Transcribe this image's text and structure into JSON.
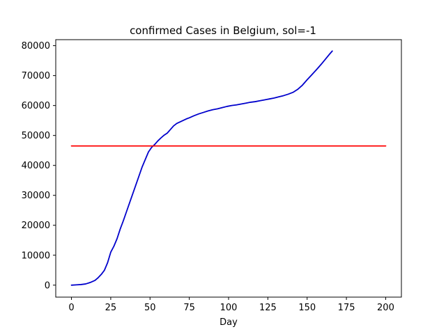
{
  "chart_data": {
    "type": "line",
    "title": "confirmed Cases in Belgium, sol=-1",
    "xlabel": "Day",
    "ylabel": "",
    "xlim": [
      -10,
      210
    ],
    "ylim": [
      -4000,
      82000
    ],
    "x_ticks": [
      0,
      25,
      50,
      75,
      100,
      125,
      150,
      175,
      200
    ],
    "y_ticks": [
      0,
      10000,
      20000,
      30000,
      40000,
      50000,
      60000,
      70000,
      80000
    ],
    "grid": false,
    "legend": "none",
    "series": [
      {
        "color": "#0000cc",
        "x": [
          0,
          3,
          6,
          9,
          12,
          15,
          17,
          19,
          21,
          23,
          25,
          27,
          29,
          31,
          33,
          35,
          37,
          39,
          41,
          43,
          45,
          47,
          49,
          51,
          53,
          55,
          57,
          59,
          61,
          63,
          65,
          67,
          69,
          71,
          73,
          75,
          78,
          81,
          84,
          87,
          90,
          93,
          96,
          99,
          102,
          105,
          108,
          111,
          114,
          117,
          120,
          123,
          126,
          129,
          132,
          135,
          138,
          141,
          144,
          147,
          150,
          153,
          156,
          159,
          162,
          164,
          166
        ],
        "values": [
          0,
          100,
          200,
          400,
          900,
          1600,
          2500,
          3600,
          5000,
          7500,
          11000,
          13000,
          15500,
          18700,
          21500,
          24500,
          27500,
          30500,
          33500,
          36500,
          39500,
          42000,
          44500,
          46000,
          47000,
          48200,
          49200,
          50100,
          50800,
          52000,
          53200,
          54000,
          54500,
          55000,
          55500,
          55900,
          56600,
          57200,
          57700,
          58200,
          58600,
          58900,
          59300,
          59700,
          60000,
          60200,
          60500,
          60800,
          61100,
          61300,
          61600,
          61900,
          62200,
          62500,
          62900,
          63300,
          63800,
          64400,
          65400,
          66800,
          68600,
          70300,
          72000,
          73800,
          75700,
          77000,
          78200
        ]
      },
      {
        "color": "#ff0000",
        "x": [
          0,
          200
        ],
        "values": [
          46500,
          46500
        ]
      }
    ]
  }
}
